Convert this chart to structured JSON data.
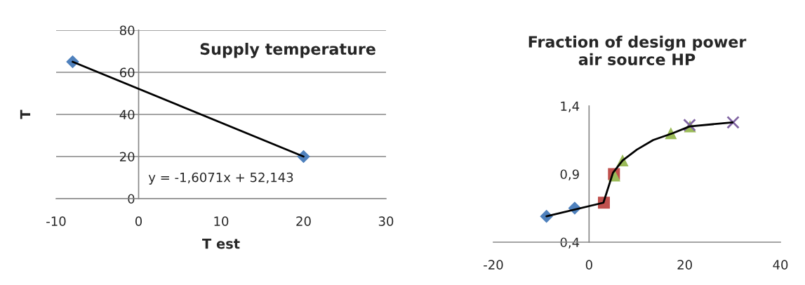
{
  "chart_data": [
    {
      "type": "scatter",
      "title": "Supply temperature",
      "xlabel": "T est",
      "ylabel": "T",
      "xlim": [
        -10,
        30
      ],
      "xticks": [
        -10,
        0,
        10,
        20,
        30
      ],
      "ylim": [
        0,
        80
      ],
      "yticks": [
        0,
        20,
        40,
        60,
        80
      ],
      "grid": "y",
      "annotations": [
        "y = -1,6071x + 52,143"
      ],
      "series": [
        {
          "type": "line",
          "color": "#000000",
          "x": [
            -8,
            20
          ],
          "values": [
            65,
            20
          ],
          "marker": "none"
        },
        {
          "color": "#4f81bd",
          "x": [
            -8,
            20
          ],
          "values": [
            65,
            20
          ],
          "marker": "diamond"
        }
      ]
    },
    {
      "type": "scatter",
      "title": "Fraction of design power\nair source HP",
      "xlim": [
        -20,
        40
      ],
      "xticks": [
        -20,
        0,
        20,
        40
      ],
      "ylim": [
        0.4,
        1.4
      ],
      "yticks": [
        {
          "value": 0.4,
          "label": "0,4"
        },
        {
          "value": 0.9,
          "label": "0,9"
        },
        {
          "value": 1.4,
          "label": "1,4"
        }
      ],
      "grid": false,
      "series": [
        {
          "type": "line",
          "color": "#000000",
          "x": [
            -8.9,
            3,
            5,
            7,
            10,
            13.4,
            17.5,
            21,
            30
          ],
          "values": [
            0.59,
            0.69,
            0.91,
            1.0,
            1.08,
            1.15,
            1.2,
            1.25,
            1.28
          ],
          "marker": "none"
        },
        {
          "color": "#4f81bd",
          "x": [
            -8.9,
            -3
          ],
          "values": [
            0.59,
            0.65
          ],
          "marker": "diamond"
        },
        {
          "color": "#c0504d",
          "x": [
            3.1,
            5.2
          ],
          "values": [
            0.69,
            0.9
          ],
          "marker": "square"
        },
        {
          "color": "#9bbb59",
          "x": [
            5.3,
            7,
            17.1,
            21.1
          ],
          "values": [
            0.89,
            1.0,
            1.2,
            1.25
          ],
          "marker": "triangle"
        },
        {
          "color": "#8064a2",
          "x": [
            21,
            30.1
          ],
          "values": [
            1.26,
            1.28
          ],
          "marker": "cross"
        }
      ]
    }
  ]
}
